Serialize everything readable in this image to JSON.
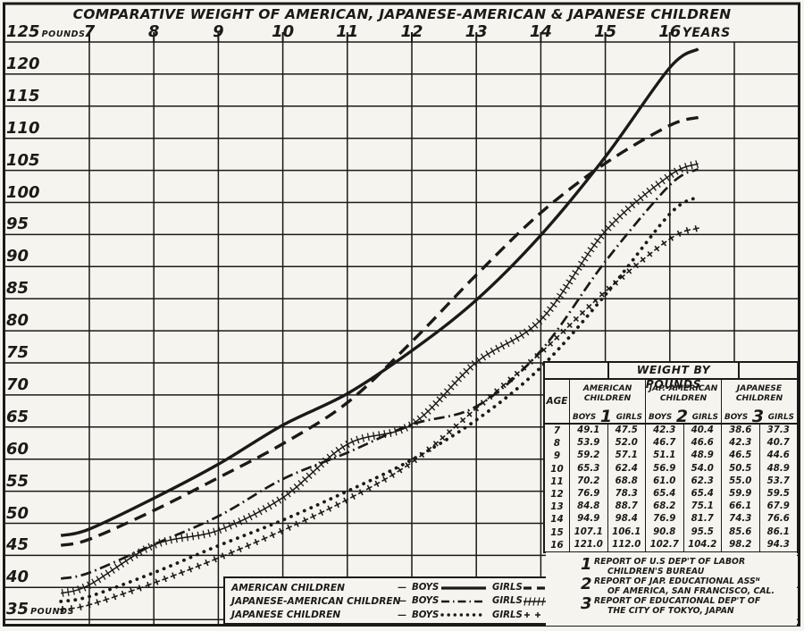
{
  "title": "COMPARATIVE WEIGHT OF AMERICAN, JAPANESE-AMERICAN & JAPANESE CHILDREN",
  "colors": {
    "ink": "#1a1a1a",
    "paper": "#f6f4ee"
  },
  "chart_data": {
    "type": "line",
    "title": "COMPARATIVE WEIGHT OF AMERICAN, JAPANESE-AMERICAN & JAPANESE CHILDREN",
    "x": [
      7,
      8,
      9,
      10,
      11,
      12,
      13,
      14,
      15,
      16
    ],
    "xlabel": "YEARS",
    "ylabel": "POUNDS",
    "ylim": [
      35,
      125
    ],
    "ytick_step": 5,
    "yticks": [
      125,
      120,
      115,
      110,
      105,
      100,
      95,
      90,
      85,
      80,
      75,
      70,
      65,
      60,
      55,
      50,
      45,
      40,
      35
    ],
    "grid": true,
    "legend_position": "bottom",
    "series": [
      {
        "name": "American Children - Boys",
        "style": "solid",
        "values": [
          49.1,
          53.9,
          59.2,
          65.3,
          70.2,
          76.9,
          84.8,
          94.9,
          107.1,
          121.0
        ]
      },
      {
        "name": "American Children - Girls",
        "style": "dashed",
        "values": [
          47.5,
          52.0,
          57.1,
          62.4,
          68.8,
          78.3,
          88.7,
          98.4,
          106.1,
          112.0
        ]
      },
      {
        "name": "Japanese-American Children - Boys",
        "style": "dashdot",
        "values": [
          42.3,
          46.7,
          51.1,
          56.9,
          61.0,
          65.4,
          68.2,
          76.9,
          90.8,
          102.7
        ]
      },
      {
        "name": "Japanese-American Children - Girls",
        "style": "hatch",
        "values": [
          40.4,
          46.6,
          48.9,
          54.0,
          62.3,
          65.4,
          75.1,
          81.7,
          95.5,
          104.2
        ]
      },
      {
        "name": "Japanese Children - Boys",
        "style": "dotted",
        "values": [
          38.6,
          42.3,
          46.5,
          50.5,
          55.0,
          59.9,
          66.1,
          74.3,
          85.6,
          98.2
        ]
      },
      {
        "name": "Japanese Children - Girls",
        "style": "plus",
        "values": [
          37.3,
          40.7,
          44.6,
          48.9,
          53.7,
          59.5,
          67.9,
          76.6,
          86.1,
          94.3
        ]
      }
    ]
  },
  "table": {
    "title": "WEIGHT BY POUNDS",
    "age_header": "AGE",
    "boys": "BOYS",
    "girls": "GIRLS",
    "groups": [
      {
        "name1": "AMERICAN",
        "name2": "CHILDREN",
        "ref": "1"
      },
      {
        "name1": "JAP.-AMERICAN",
        "name2": "CHILDREN",
        "ref": "2"
      },
      {
        "name1": "JAPANESE",
        "name2": "CHILDREN",
        "ref": "3"
      }
    ],
    "rows": [
      {
        "age": "7",
        "cells": [
          "49.1",
          "47.5",
          "42.3",
          "40.4",
          "38.6",
          "37.3"
        ]
      },
      {
        "age": "8",
        "cells": [
          "53.9",
          "52.0",
          "46.7",
          "46.6",
          "42.3",
          "40.7"
        ]
      },
      {
        "age": "9",
        "cells": [
          "59.2",
          "57.1",
          "51.1",
          "48.9",
          "46.5",
          "44.6"
        ]
      },
      {
        "age": "10",
        "cells": [
          "65.3",
          "62.4",
          "56.9",
          "54.0",
          "50.5",
          "48.9"
        ]
      },
      {
        "age": "11",
        "cells": [
          "70.2",
          "68.8",
          "61.0",
          "62.3",
          "55.0",
          "53.7"
        ]
      },
      {
        "age": "12",
        "cells": [
          "76.9",
          "78.3",
          "65.4",
          "65.4",
          "59.9",
          "59.5"
        ]
      },
      {
        "age": "13",
        "cells": [
          "84.8",
          "88.7",
          "68.2",
          "75.1",
          "66.1",
          "67.9"
        ]
      },
      {
        "age": "14",
        "cells": [
          "94.9",
          "98.4",
          "76.9",
          "81.7",
          "74.3",
          "76.6"
        ]
      },
      {
        "age": "15",
        "cells": [
          "107.1",
          "106.1",
          "90.8",
          "95.5",
          "85.6",
          "86.1"
        ]
      },
      {
        "age": "16",
        "cells": [
          "121.0",
          "112.0",
          "102.7",
          "104.2",
          "98.2",
          "94.3"
        ]
      }
    ]
  },
  "legend": {
    "dash": "—",
    "boys_label": "BOYS",
    "girls_label": "GIRLS",
    "rows": [
      {
        "label": "AMERICAN CHILDREN",
        "boys_style": "solid",
        "girls_style": "dashed"
      },
      {
        "label": "JAPANESE-AMERICAN CHILDREN",
        "boys_style": "dashdot",
        "girls_style": "hatch"
      },
      {
        "label": "JAPANESE CHILDREN",
        "boys_style": "dotted",
        "girls_style": "plus"
      }
    ]
  },
  "footnotes": [
    {
      "num": "1",
      "line1": "REPORT OF U.S DEP'T OF LABOR",
      "line2": "CHILDREN'S BUREAU"
    },
    {
      "num": "2",
      "line1": "REPORT OF JAP. EDUCATIONAL ASSᴺ",
      "line2": "OF AMERICA, SAN FRANCISCO, CAL."
    },
    {
      "num": "3",
      "line1": "REPORT OF EDUCATIONAL DEP'T OF",
      "line2": "THE CITY OF TOKYO, JAPAN"
    }
  ]
}
